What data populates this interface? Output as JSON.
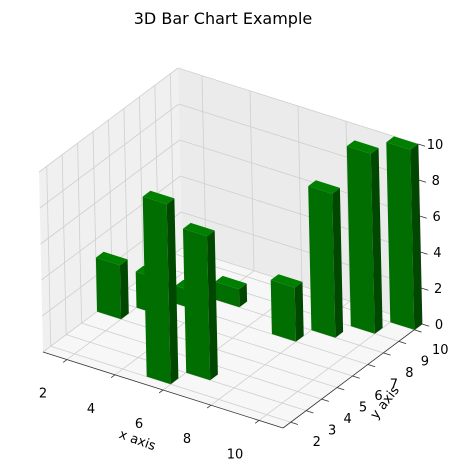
{
  "chart_data": {
    "type": "bar3d",
    "title": "3D Bar Chart Example",
    "xlabel": "x axis",
    "ylabel": "y axis",
    "zlabel": "",
    "x_ticks": [
      "2",
      "4",
      "6",
      "8",
      "10"
    ],
    "y_ticks": [
      "2",
      "3",
      "4",
      "5",
      "6",
      "7",
      "8",
      "9",
      "10"
    ],
    "z_ticks": [
      "0",
      "2",
      "4",
      "6",
      "8",
      "10"
    ],
    "xlim": [
      1,
      11
    ],
    "ylim": [
      1.5,
      10.5
    ],
    "zlim": [
      0,
      10
    ],
    "bar_size": {
      "dx": 1,
      "dy": 0.5
    },
    "bars": [
      {
        "x": 1,
        "y": 5,
        "z": 3
      },
      {
        "x": 2,
        "y": 6,
        "z": 2
      },
      {
        "x": 3,
        "y": 7,
        "z": 1
      },
      {
        "x": 4,
        "y": 8,
        "z": 1
      },
      {
        "x": 5,
        "y": 2,
        "z": 10
      },
      {
        "x": 6,
        "y": 3,
        "z": 8
      },
      {
        "x": 7,
        "y": 7,
        "z": 3
      },
      {
        "x": 8,
        "y": 8,
        "z": 8
      },
      {
        "x": 9,
        "y": 9,
        "z": 10
      },
      {
        "x": 10,
        "y": 10,
        "z": 10
      }
    ],
    "grid": true,
    "colors": {
      "bar_top": "#007f00",
      "bar_front": "#006e00",
      "bar_side": "#004800",
      "pane_left": "#f0f0f0",
      "pane_back": "#ebebeb",
      "pane_floor": "#f7f7f7",
      "grid": "#cfcfcf"
    }
  }
}
